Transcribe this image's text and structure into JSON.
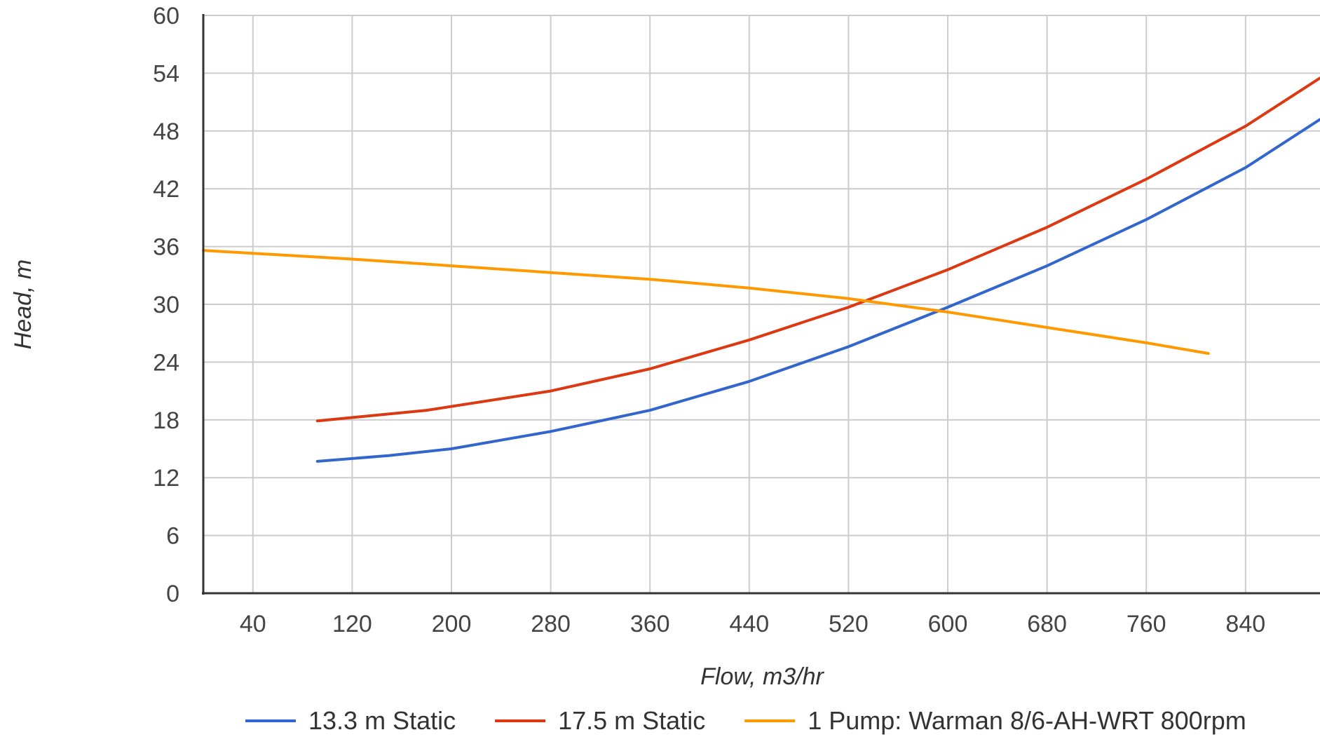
{
  "chart_data": {
    "type": "line",
    "title": "",
    "xlabel": "Flow, m3/hr",
    "ylabel": "Head, m",
    "xlim": [
      0,
      900
    ],
    "ylim": [
      0,
      60
    ],
    "x_ticks": [
      40,
      120,
      200,
      280,
      360,
      440,
      520,
      600,
      680,
      760,
      840
    ],
    "y_ticks": [
      0,
      6,
      12,
      18,
      24,
      30,
      36,
      42,
      48,
      54,
      60
    ],
    "grid": true,
    "legend_position": "bottom",
    "series": [
      {
        "name": "13.3 m Static",
        "color": "#3366cc",
        "points": [
          [
            92,
            13.7
          ],
          [
            150,
            14.3
          ],
          [
            200,
            15.0
          ],
          [
            280,
            16.8
          ],
          [
            360,
            19.0
          ],
          [
            440,
            22.0
          ],
          [
            520,
            25.6
          ],
          [
            600,
            29.7
          ],
          [
            680,
            34.0
          ],
          [
            760,
            38.8
          ],
          [
            840,
            44.2
          ],
          [
            900,
            49.2
          ]
        ]
      },
      {
        "name": "17.5 m Static",
        "color": "#dc3912",
        "points": [
          [
            92,
            17.9
          ],
          [
            180,
            19.0
          ],
          [
            280,
            21.0
          ],
          [
            360,
            23.3
          ],
          [
            440,
            26.3
          ],
          [
            520,
            29.7
          ],
          [
            600,
            33.6
          ],
          [
            680,
            38.0
          ],
          [
            760,
            43.0
          ],
          [
            840,
            48.5
          ],
          [
            900,
            53.5
          ]
        ]
      },
      {
        "name": "1 Pump: Warman 8/6-AH-WRT 800rpm",
        "color": "#ff9900",
        "points": [
          [
            0,
            35.6
          ],
          [
            120,
            34.7
          ],
          [
            200,
            34.0
          ],
          [
            280,
            33.3
          ],
          [
            360,
            32.6
          ],
          [
            440,
            31.7
          ],
          [
            520,
            30.6
          ],
          [
            600,
            29.2
          ],
          [
            680,
            27.6
          ],
          [
            760,
            26.0
          ],
          [
            810,
            24.9
          ]
        ]
      }
    ]
  }
}
